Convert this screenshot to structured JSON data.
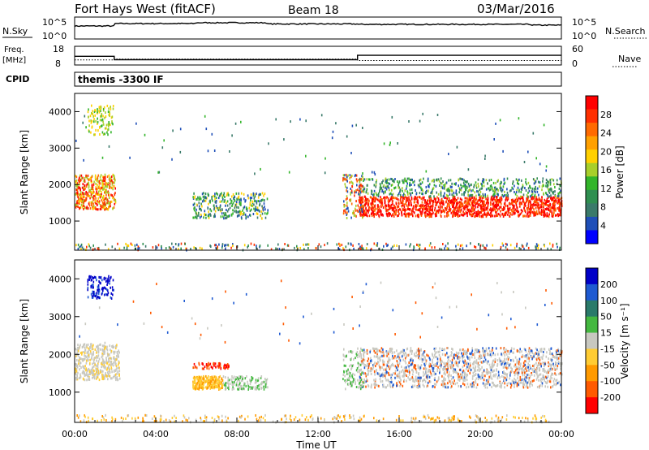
{
  "header": {
    "station": "Fort Hays West (fitACF)",
    "beam": "Beam 18",
    "date": "03/Mar/2016"
  },
  "colors": {
    "power_scale": [
      "#0000ff",
      "#1f4fb8",
      "#3a7a6a",
      "#2f8f50",
      "#33b52a",
      "#a8cf2a",
      "#ffd000",
      "#ffa000",
      "#ff6a00",
      "#ff3000",
      "#ff0000"
    ],
    "velocity_scale": [
      "#0000c8",
      "#1e5ad2",
      "#2a7a6a",
      "#44b840",
      "#c8c8c0",
      "#ffcc33",
      "#ff9a00",
      "#ff5a00",
      "#ff0000"
    ]
  },
  "chart_data": [
    {
      "type": "line",
      "name": "noise-panel",
      "left_label": "N.Sky",
      "right_label": "N.Search",
      "left_ticks": [
        "10^5",
        "10^0"
      ],
      "right_ticks": [
        "10^5",
        "10^0"
      ],
      "x": [
        0,
        0.1,
        1.9,
        2.0,
        5.9,
        6.0,
        9.4,
        9.5,
        13.9,
        14.0,
        22.5,
        24.0
      ],
      "series": [
        {
          "name": "N.Sky",
          "values": [
            3.0,
            3.0,
            3.0,
            3.6,
            3.6,
            3.8,
            3.8,
            3.5,
            3.5,
            3.4,
            3.2,
            3.2
          ]
        }
      ],
      "ylim": [
        0,
        5
      ]
    },
    {
      "type": "line",
      "name": "freq-panel",
      "left_label": "Freq.",
      "left_unit": "[MHz]",
      "right_label": "Nave",
      "left_ticks": [
        "18",
        "8"
      ],
      "right_ticks": [
        "60",
        "0"
      ],
      "x": [
        0,
        1.95,
        1.95,
        13.95,
        13.95,
        24.0
      ],
      "series": [
        {
          "name": "Freq",
          "values": [
            12.6,
            12.6,
            10.6,
            10.6,
            13.2,
            13.2
          ]
        },
        {
          "name": "Nave",
          "values": [
            15,
            15,
            18,
            18,
            13,
            13
          ]
        }
      ],
      "ylim_left": [
        8,
        18
      ],
      "ylim_right": [
        0,
        60
      ]
    },
    {
      "type": "table",
      "name": "cpid-panel",
      "label": "CPID",
      "value": "themis -3300 IF"
    },
    {
      "type": "heatmap",
      "name": "power",
      "ylabel": "Slant Range [km]",
      "yticks": [
        1000,
        2000,
        3000,
        4000
      ],
      "ylim": [
        200,
        4500
      ],
      "colorbar_label": "Power [dB]",
      "colorbar_ticks": [
        4,
        8,
        12,
        16,
        20,
        24,
        28
      ],
      "colorbar_range": [
        0,
        32
      ]
    },
    {
      "type": "heatmap",
      "name": "velocity",
      "ylabel": "Slant Range [km]",
      "yticks": [
        1000,
        2000,
        3000,
        4000
      ],
      "ylim": [
        200,
        4500
      ],
      "colorbar_label": "Velocity [m s⁻¹]",
      "colorbar_ticks": [
        200,
        100,
        50,
        15,
        -15,
        -50,
        -100,
        -200
      ]
    }
  ],
  "x_axis": {
    "label": "Time UT",
    "ticks": [
      "00:00",
      "04:00",
      "08:00",
      "12:00",
      "16:00",
      "20:00",
      "00:00"
    ],
    "xlim": [
      0,
      24
    ]
  }
}
